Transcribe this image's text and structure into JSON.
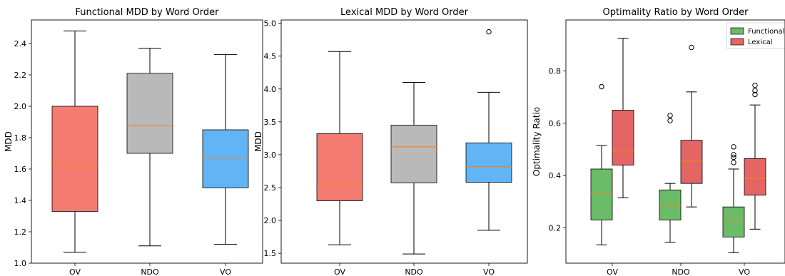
{
  "chart_data": [
    {
      "type": "box",
      "title": "Functional MDD by Word Order",
      "xlabel": "",
      "ylabel": "MDD",
      "ylim": [
        1.0,
        2.55
      ],
      "yticks": [
        1.0,
        1.2,
        1.4,
        1.6,
        1.8,
        2.0,
        2.2,
        2.4
      ],
      "categories": [
        "OV",
        "NDO",
        "VO"
      ],
      "colors": [
        "#f47b72",
        "#b9b9b9",
        "#62b4f5"
      ],
      "boxes": [
        {
          "label": "OV",
          "whislo": 1.07,
          "q1": 1.33,
          "med": 1.62,
          "q3": 2.0,
          "whishi": 2.48,
          "fliers": []
        },
        {
          "label": "NDO",
          "whislo": 1.11,
          "q1": 1.7,
          "med": 1.875,
          "q3": 2.21,
          "whishi": 2.37,
          "fliers": []
        },
        {
          "label": "VO",
          "whislo": 1.12,
          "q1": 1.48,
          "med": 1.67,
          "q3": 1.85,
          "whishi": 2.33,
          "fliers": []
        }
      ]
    },
    {
      "type": "box",
      "title": "Lexical MDD by Word Order",
      "xlabel": "",
      "ylabel": "MDD",
      "ylim": [
        1.35,
        5.05
      ],
      "yticks": [
        1.5,
        2.0,
        2.5,
        3.0,
        3.5,
        4.0,
        4.5,
        5.0
      ],
      "categories": [
        "OV",
        "NDO",
        "VO"
      ],
      "colors": [
        "#f47b72",
        "#b9b9b9",
        "#62b4f5"
      ],
      "boxes": [
        {
          "label": "OV",
          "whislo": 1.63,
          "q1": 2.3,
          "med": 2.53,
          "q3": 3.32,
          "whishi": 4.57,
          "fliers": []
        },
        {
          "label": "NDO",
          "whislo": 1.49,
          "q1": 2.57,
          "med": 3.12,
          "q3": 3.45,
          "whishi": 4.1,
          "fliers": []
        },
        {
          "label": "VO",
          "whislo": 1.85,
          "q1": 2.58,
          "med": 2.82,
          "q3": 3.18,
          "whishi": 3.95,
          "fliers": [
            4.87
          ]
        }
      ]
    },
    {
      "type": "box",
      "title": "Optimality Ratio by Word Order",
      "xlabel": "",
      "ylabel": "Optimality Ratio",
      "ylim": [
        0.065,
        0.995
      ],
      "yticks": [
        0.2,
        0.4,
        0.6,
        0.8
      ],
      "categories": [
        "OV",
        "NDO",
        "VO"
      ],
      "legend": {
        "position": "top-right",
        "entries": [
          "Functional",
          "Lexical"
        ]
      },
      "series": [
        {
          "name": "Functional",
          "color": "#6abc68",
          "boxes": [
            {
              "label": "OV",
              "whislo": 0.135,
              "q1": 0.23,
              "med": 0.335,
              "q3": 0.425,
              "whishi": 0.515,
              "fliers": [
                0.74
              ]
            },
            {
              "label": "NDO",
              "whislo": 0.145,
              "q1": 0.23,
              "med": 0.285,
              "q3": 0.345,
              "whishi": 0.37,
              "fliers": [
                0.61,
                0.63
              ]
            },
            {
              "label": "VO",
              "whislo": 0.105,
              "q1": 0.165,
              "med": 0.23,
              "q3": 0.28,
              "whishi": 0.425,
              "fliers": [
                0.45,
                0.47,
                0.48,
                0.51
              ]
            }
          ]
        },
        {
          "name": "Lexical",
          "color": "#e46564",
          "boxes": [
            {
              "label": "OV",
              "whislo": 0.315,
              "q1": 0.44,
              "med": 0.495,
              "q3": 0.65,
              "whishi": 0.925,
              "fliers": []
            },
            {
              "label": "NDO",
              "whislo": 0.28,
              "q1": 0.37,
              "med": 0.455,
              "q3": 0.535,
              "whishi": 0.72,
              "fliers": [
                0.89
              ]
            },
            {
              "label": "VO",
              "whislo": 0.195,
              "q1": 0.325,
              "med": 0.39,
              "q3": 0.465,
              "whishi": 0.67,
              "fliers": [
                0.71,
                0.725,
                0.745
              ]
            }
          ]
        }
      ]
    }
  ]
}
